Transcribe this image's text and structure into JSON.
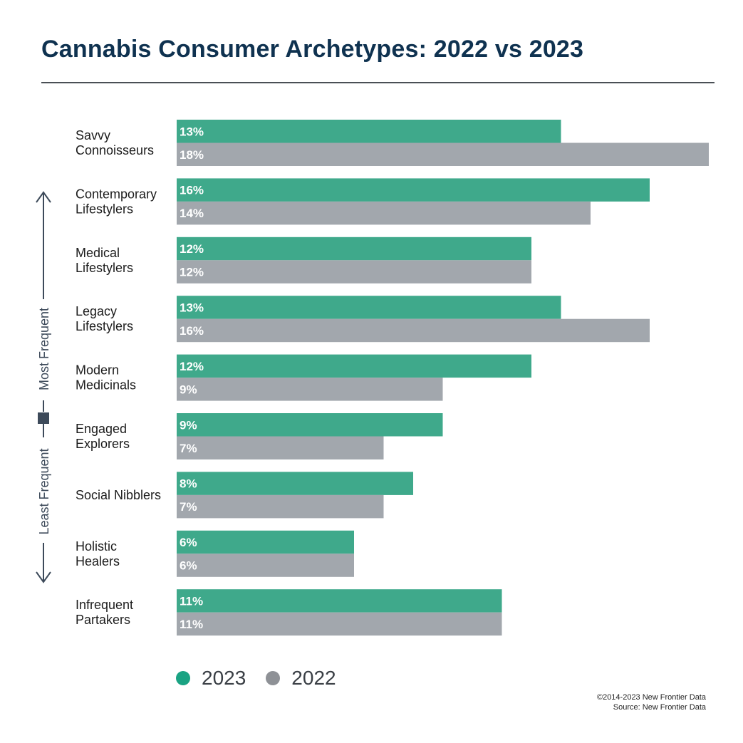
{
  "header": {
    "title": "Cannabis Consumer Archetypes: 2022 vs 2023"
  },
  "axis_guide": {
    "top_label": "Most Frequent",
    "bottom_label": "Least Frequent",
    "color": "#3d4a5a"
  },
  "colors": {
    "series_2023": "#3fa98b",
    "series_2022": "#a2a7ad"
  },
  "chart_data": {
    "type": "bar",
    "orientation": "horizontal",
    "categories": [
      [
        "Savvy",
        "Connoisseurs"
      ],
      [
        "Contemporary",
        "Lifestylers"
      ],
      [
        "Medical",
        "Lifestylers"
      ],
      [
        "Legacy",
        "Lifestylers"
      ],
      [
        "Modern",
        "Medicinals"
      ],
      [
        "Engaged",
        "Explorers"
      ],
      [
        "Social Nibblers"
      ],
      [
        "Holistic",
        "Healers"
      ],
      [
        "Infrequent",
        "Partakers"
      ]
    ],
    "series": [
      {
        "name": "2023",
        "color": "#3fa98b",
        "values": [
          13,
          16,
          12,
          13,
          12,
          9,
          8,
          6,
          11
        ],
        "labels": [
          "13%",
          "16%",
          "12%",
          "13%",
          "12%",
          "9%",
          "8%",
          "6%",
          "11%"
        ]
      },
      {
        "name": "2022",
        "color": "#a2a7ad",
        "values": [
          18,
          14,
          12,
          16,
          9,
          7,
          7,
          6,
          11
        ],
        "labels": [
          "18%",
          "14%",
          "12%",
          "16%",
          "9%",
          "7%",
          "7%",
          "6%",
          "11%"
        ]
      }
    ],
    "unit": "%",
    "legend_position": "bottom-left",
    "grid": false
  },
  "legend": [
    {
      "label": "2023",
      "color": "#1aa383"
    },
    {
      "label": "2022",
      "color": "#8e9196"
    }
  ],
  "footer": {
    "copyright": "©2014-2023  New Frontier Data",
    "source": "Source: New Frontier Data"
  }
}
